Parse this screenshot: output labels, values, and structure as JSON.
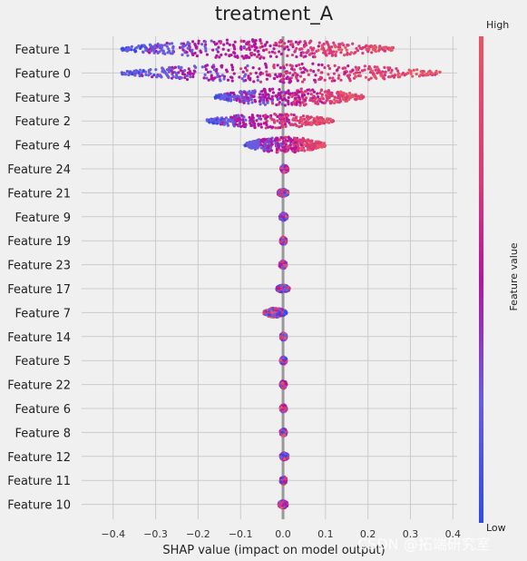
{
  "chart_data": {
    "type": "scatter",
    "subtype": "shap-beeswarm",
    "title": "treatment_A",
    "xlabel": "SHAP value (impact on model output)",
    "xlim": [
      -0.44,
      0.41
    ],
    "x_ticks": [
      "−0.4",
      "−0.3",
      "−0.2",
      "−0.1",
      "0.0",
      "0.1",
      "0.2",
      "0.3",
      "0.4"
    ],
    "x_tick_values": [
      -0.4,
      -0.3,
      -0.2,
      -0.1,
      0.0,
      0.1,
      0.2,
      0.3,
      0.4
    ],
    "grid": true,
    "features": [
      {
        "name": "Feature 1",
        "min": -0.38,
        "max": 0.26,
        "spread": 1.0
      },
      {
        "name": "Feature 0",
        "min": -0.38,
        "max": 0.37,
        "spread": 1.0
      },
      {
        "name": "Feature 3",
        "min": -0.16,
        "max": 0.19,
        "spread": 0.9
      },
      {
        "name": "Feature 2",
        "min": -0.18,
        "max": 0.12,
        "spread": 0.7
      },
      {
        "name": "Feature 4",
        "min": -0.09,
        "max": 0.1,
        "spread": 0.8
      },
      {
        "name": "Feature 24",
        "min": -0.005,
        "max": 0.012,
        "spread": 0.3
      },
      {
        "name": "Feature 21",
        "min": -0.012,
        "max": 0.012,
        "spread": 0.3
      },
      {
        "name": "Feature 9",
        "min": -0.008,
        "max": 0.01,
        "spread": 0.3
      },
      {
        "name": "Feature 19",
        "min": -0.006,
        "max": 0.008,
        "spread": 0.3
      },
      {
        "name": "Feature 23",
        "min": -0.008,
        "max": 0.008,
        "spread": 0.3
      },
      {
        "name": "Feature 17",
        "min": -0.015,
        "max": 0.015,
        "spread": 0.3
      },
      {
        "name": "Feature 7",
        "min": -0.045,
        "max": 0.008,
        "spread": 0.4
      },
      {
        "name": "Feature 14",
        "min": -0.006,
        "max": 0.008,
        "spread": 0.3
      },
      {
        "name": "Feature 5",
        "min": -0.006,
        "max": 0.008,
        "spread": 0.3
      },
      {
        "name": "Feature 22",
        "min": -0.006,
        "max": 0.008,
        "spread": 0.3
      },
      {
        "name": "Feature 6",
        "min": -0.006,
        "max": 0.008,
        "spread": 0.3
      },
      {
        "name": "Feature 8",
        "min": -0.006,
        "max": 0.008,
        "spread": 0.3
      },
      {
        "name": "Feature 12",
        "min": -0.006,
        "max": 0.012,
        "spread": 0.3
      },
      {
        "name": "Feature 11",
        "min": -0.006,
        "max": 0.008,
        "spread": 0.3
      },
      {
        "name": "Feature 10",
        "min": -0.01,
        "max": 0.01,
        "spread": 0.3
      }
    ],
    "colorbar": {
      "label": "Feature value",
      "high_label": "High",
      "low_label": "Low",
      "colors": [
        "#2e4de6",
        "#6a5ce0",
        "#b3169e",
        "#d93a7a",
        "#e85565"
      ]
    }
  },
  "watermark": "CSDN @拓端研究室"
}
